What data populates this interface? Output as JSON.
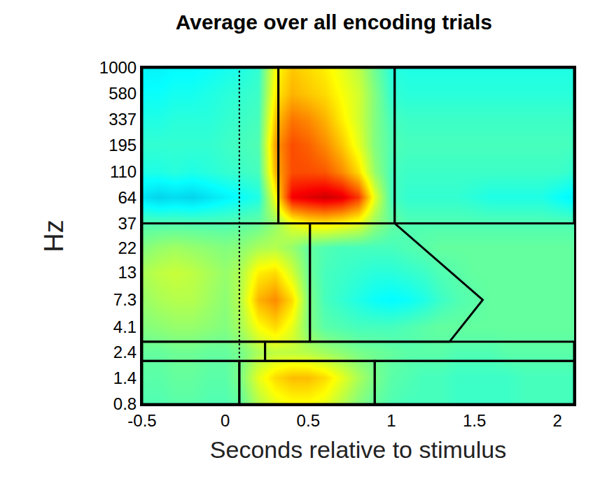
{
  "chart_data": {
    "type": "heatmap",
    "title": "Average over all encoding trials",
    "x_label": "Seconds relative to stimulus",
    "y_label": "Hz",
    "log": "y",
    "xlim": [
      -0.5,
      2.1
    ],
    "ylim": [
      0.8,
      1000
    ],
    "xticks": [
      -0.5,
      0,
      0.5,
      1,
      1.5,
      2
    ],
    "yticks": [
      0.8,
      1.4,
      2.4,
      4.1,
      7.3,
      13,
      22,
      37,
      64,
      110,
      195,
      337,
      580,
      1000
    ],
    "zlim": [
      0,
      1
    ],
    "x": [
      -0.5,
      -0.4,
      -0.3,
      -0.2,
      -0.1,
      0,
      0.1,
      0.2,
      0.3,
      0.4,
      0.5,
      0.6,
      0.7,
      0.8,
      0.9,
      1.0,
      1.1,
      1.2,
      1.3,
      1.4,
      1.5,
      1.6,
      1.7,
      1.8,
      1.9,
      2.0,
      2.1
    ],
    "y": [
      0.8,
      1.4,
      2.4,
      4.1,
      7.3,
      13,
      22,
      37,
      64,
      110,
      195,
      337,
      580,
      1000
    ],
    "z": [
      [
        0.45,
        0.45,
        0.46,
        0.46,
        0.45,
        0.45,
        0.47,
        0.55,
        0.6,
        0.62,
        0.62,
        0.6,
        0.55,
        0.5,
        0.47,
        0.45,
        0.44,
        0.44,
        0.44,
        0.43,
        0.43,
        0.43,
        0.43,
        0.44,
        0.44,
        0.44,
        0.44
      ],
      [
        0.46,
        0.46,
        0.47,
        0.47,
        0.46,
        0.46,
        0.5,
        0.6,
        0.66,
        0.69,
        0.69,
        0.66,
        0.6,
        0.54,
        0.49,
        0.46,
        0.45,
        0.44,
        0.44,
        0.43,
        0.43,
        0.43,
        0.43,
        0.44,
        0.44,
        0.44,
        0.44
      ],
      [
        0.47,
        0.47,
        0.48,
        0.48,
        0.47,
        0.47,
        0.49,
        0.54,
        0.56,
        0.56,
        0.55,
        0.53,
        0.51,
        0.49,
        0.48,
        0.47,
        0.46,
        0.46,
        0.46,
        0.45,
        0.45,
        0.45,
        0.46,
        0.46,
        0.46,
        0.46,
        0.46
      ],
      [
        0.5,
        0.51,
        0.52,
        0.52,
        0.51,
        0.5,
        0.54,
        0.62,
        0.66,
        0.6,
        0.5,
        0.46,
        0.45,
        0.44,
        0.44,
        0.44,
        0.45,
        0.46,
        0.47,
        0.47,
        0.47,
        0.47,
        0.47,
        0.47,
        0.47,
        0.47,
        0.47
      ],
      [
        0.52,
        0.54,
        0.55,
        0.55,
        0.53,
        0.51,
        0.56,
        0.7,
        0.74,
        0.66,
        0.5,
        0.44,
        0.42,
        0.4,
        0.38,
        0.37,
        0.38,
        0.4,
        0.43,
        0.45,
        0.46,
        0.47,
        0.47,
        0.47,
        0.47,
        0.47,
        0.47
      ],
      [
        0.54,
        0.56,
        0.57,
        0.56,
        0.54,
        0.52,
        0.55,
        0.64,
        0.66,
        0.58,
        0.48,
        0.44,
        0.43,
        0.42,
        0.41,
        0.41,
        0.42,
        0.43,
        0.45,
        0.46,
        0.47,
        0.47,
        0.47,
        0.47,
        0.47,
        0.47,
        0.47
      ],
      [
        0.5,
        0.52,
        0.53,
        0.52,
        0.51,
        0.5,
        0.51,
        0.54,
        0.55,
        0.52,
        0.47,
        0.45,
        0.44,
        0.44,
        0.44,
        0.44,
        0.45,
        0.46,
        0.47,
        0.47,
        0.47,
        0.47,
        0.47,
        0.47,
        0.47,
        0.47,
        0.47
      ],
      [
        0.45,
        0.45,
        0.45,
        0.45,
        0.45,
        0.45,
        0.46,
        0.47,
        0.52,
        0.6,
        0.64,
        0.65,
        0.63,
        0.6,
        0.52,
        0.47,
        0.45,
        0.45,
        0.45,
        0.45,
        0.45,
        0.45,
        0.45,
        0.45,
        0.45,
        0.45,
        0.45
      ],
      [
        0.34,
        0.32,
        0.33,
        0.32,
        0.34,
        0.36,
        0.38,
        0.4,
        0.62,
        0.88,
        0.9,
        0.92,
        0.9,
        0.82,
        0.6,
        0.44,
        0.42,
        0.42,
        0.42,
        0.42,
        0.41,
        0.4,
        0.4,
        0.4,
        0.4,
        0.38,
        0.36
      ],
      [
        0.4,
        0.4,
        0.41,
        0.4,
        0.41,
        0.42,
        0.43,
        0.44,
        0.7,
        0.8,
        0.8,
        0.79,
        0.74,
        0.66,
        0.52,
        0.44,
        0.43,
        0.43,
        0.43,
        0.43,
        0.43,
        0.43,
        0.43,
        0.43,
        0.43,
        0.43,
        0.42
      ],
      [
        0.42,
        0.42,
        0.42,
        0.42,
        0.42,
        0.43,
        0.44,
        0.45,
        0.72,
        0.8,
        0.78,
        0.74,
        0.68,
        0.6,
        0.5,
        0.45,
        0.44,
        0.44,
        0.44,
        0.44,
        0.44,
        0.44,
        0.44,
        0.44,
        0.44,
        0.44,
        0.44
      ],
      [
        0.4,
        0.4,
        0.41,
        0.41,
        0.41,
        0.42,
        0.43,
        0.44,
        0.68,
        0.76,
        0.74,
        0.7,
        0.64,
        0.58,
        0.5,
        0.44,
        0.43,
        0.43,
        0.43,
        0.43,
        0.43,
        0.43,
        0.43,
        0.43,
        0.43,
        0.43,
        0.43
      ],
      [
        0.38,
        0.38,
        0.39,
        0.39,
        0.4,
        0.41,
        0.42,
        0.43,
        0.64,
        0.7,
        0.68,
        0.66,
        0.62,
        0.58,
        0.5,
        0.42,
        0.41,
        0.41,
        0.41,
        0.41,
        0.41,
        0.41,
        0.41,
        0.41,
        0.41,
        0.41,
        0.41
      ],
      [
        0.36,
        0.36,
        0.37,
        0.37,
        0.38,
        0.39,
        0.4,
        0.42,
        0.62,
        0.68,
        0.66,
        0.64,
        0.6,
        0.56,
        0.48,
        0.41,
        0.4,
        0.4,
        0.4,
        0.4,
        0.4,
        0.4,
        0.4,
        0.4,
        0.4,
        0.4,
        0.4
      ]
    ],
    "vertical_line_x": 0.085,
    "line_style": "dot",
    "regions": [
      [
        [
          -0.5,
          37
        ],
        [
          0.32,
          37
        ],
        [
          0.32,
          1000
        ],
        [
          -0.5,
          1000
        ]
      ],
      [
        [
          0.32,
          37
        ],
        [
          1.02,
          37
        ],
        [
          1.02,
          1000
        ],
        [
          0.32,
          1000
        ]
      ],
      [
        [
          1.02,
          37
        ],
        [
          2.1,
          37
        ],
        [
          2.1,
          1000
        ],
        [
          1.02,
          1000
        ]
      ],
      [
        [
          -0.5,
          3.0
        ],
        [
          0.51,
          3.0
        ],
        [
          0.51,
          37
        ],
        [
          -0.5,
          37
        ]
      ],
      [
        [
          0.51,
          3.0
        ],
        [
          1.35,
          3.0
        ],
        [
          1.55,
          7.3
        ],
        [
          1.02,
          37
        ],
        [
          0.51,
          37
        ]
      ],
      [
        [
          -0.5,
          2.0
        ],
        [
          0.24,
          2.0
        ],
        [
          0.24,
          3.0
        ],
        [
          -0.5,
          3.0
        ]
      ],
      [
        [
          0.24,
          2.0
        ],
        [
          2.1,
          2.0
        ],
        [
          2.1,
          3.0
        ],
        [
          0.24,
          3.0
        ]
      ],
      [
        [
          -0.5,
          0.8
        ],
        [
          0.085,
          0.8
        ],
        [
          0.085,
          2.0
        ],
        [
          -0.5,
          2.0
        ]
      ],
      [
        [
          0.085,
          0.8
        ],
        [
          0.9,
          0.8
        ],
        [
          0.9,
          2.0
        ],
        [
          0.085,
          2.0
        ]
      ],
      [
        [
          0.9,
          0.8
        ],
        [
          2.1,
          0.8
        ],
        [
          2.1,
          2.0
        ],
        [
          0.9,
          2.0
        ]
      ]
    ]
  }
}
